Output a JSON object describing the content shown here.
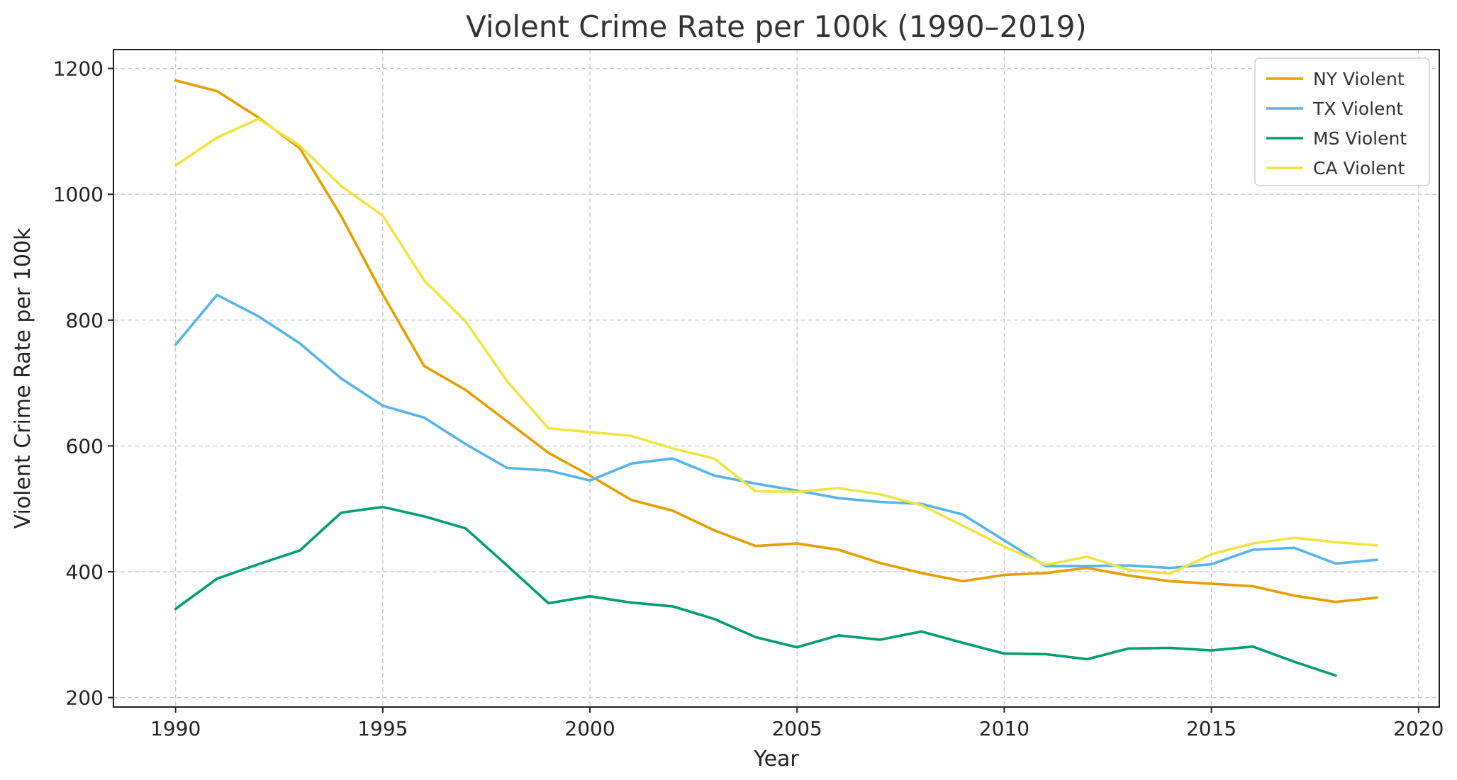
{
  "chart_data": {
    "type": "line",
    "title": "Violent Crime Rate per 100k (1990–2019)",
    "xlabel": "Year",
    "ylabel": "Violent Crime Rate per 100k",
    "xlim": [
      1988.5,
      2020.5
    ],
    "ylim": [
      185,
      1230
    ],
    "x_ticks": [
      1990,
      1995,
      2000,
      2005,
      2010,
      2015,
      2020
    ],
    "y_ticks": [
      200,
      400,
      600,
      800,
      1000,
      1200
    ],
    "grid": true,
    "legend_position": "top-right",
    "series": [
      {
        "name": "NY Violent",
        "color": "#E69F00",
        "x": [
          1990,
          1991,
          1992,
          1993,
          1994,
          1995,
          1996,
          1997,
          1998,
          1999,
          2000,
          2001,
          2002,
          2003,
          2004,
          2005,
          2006,
          2007,
          2008,
          2009,
          2010,
          2011,
          2012,
          2013,
          2014,
          2015,
          2016,
          2017,
          2018,
          2019
        ],
        "values": [
          1181,
          1164,
          1122,
          1073,
          965,
          841,
          727,
          689,
          639,
          589,
          553,
          514,
          497,
          466,
          441,
          445,
          435,
          414,
          398,
          385,
          395,
          398,
          406,
          394,
          385,
          381,
          377,
          362,
          352,
          359
        ]
      },
      {
        "name": "TX Violent",
        "color": "#56B4E9",
        "x": [
          1990,
          1991,
          1992,
          1993,
          1994,
          1995,
          1996,
          1997,
          1998,
          1999,
          2000,
          2001,
          2002,
          2003,
          2004,
          2005,
          2006,
          2007,
          2008,
          2009,
          2010,
          2011,
          2012,
          2013,
          2014,
          2015,
          2016,
          2017,
          2018,
          2019
        ],
        "values": [
          761,
          840,
          806,
          763,
          707,
          664,
          645,
          603,
          565,
          561,
          545,
          572,
          580,
          553,
          540,
          529,
          517,
          511,
          508,
          491,
          450,
          409,
          409,
          410,
          406,
          412,
          435,
          438,
          413,
          419
        ]
      },
      {
        "name": "MS Violent",
        "color": "#009E73",
        "x": [
          1990,
          1991,
          1992,
          1993,
          1994,
          1995,
          1996,
          1997,
          1998,
          1999,
          2000,
          2001,
          2002,
          2003,
          2004,
          2005,
          2006,
          2007,
          2008,
          2009,
          2010,
          2011,
          2012,
          2013,
          2014,
          2015,
          2016,
          2017,
          2018
        ],
        "values": [
          341,
          389,
          412,
          434,
          494,
          503,
          488,
          469,
          410,
          350,
          361,
          351,
          345,
          325,
          296,
          280,
          299,
          292,
          305,
          287,
          270,
          269,
          261,
          278,
          279,
          275,
          281,
          257,
          235
        ]
      },
      {
        "name": "CA Violent",
        "color": "#F0E442",
        "x": [
          1990,
          1991,
          1992,
          1993,
          1994,
          1995,
          1996,
          1997,
          1998,
          1999,
          2000,
          2001,
          2002,
          2003,
          2004,
          2005,
          2006,
          2007,
          2008,
          2009,
          2010,
          2011,
          2012,
          2013,
          2014,
          2015,
          2016,
          2017,
          2018,
          2019
        ],
        "values": [
          1046,
          1090,
          1120,
          1077,
          1013,
          966,
          863,
          798,
          703,
          628,
          622,
          616,
          596,
          580,
          528,
          527,
          533,
          523,
          506,
          473,
          440,
          411,
          424,
          403,
          397,
          428,
          445,
          454,
          447,
          442
        ]
      }
    ]
  }
}
